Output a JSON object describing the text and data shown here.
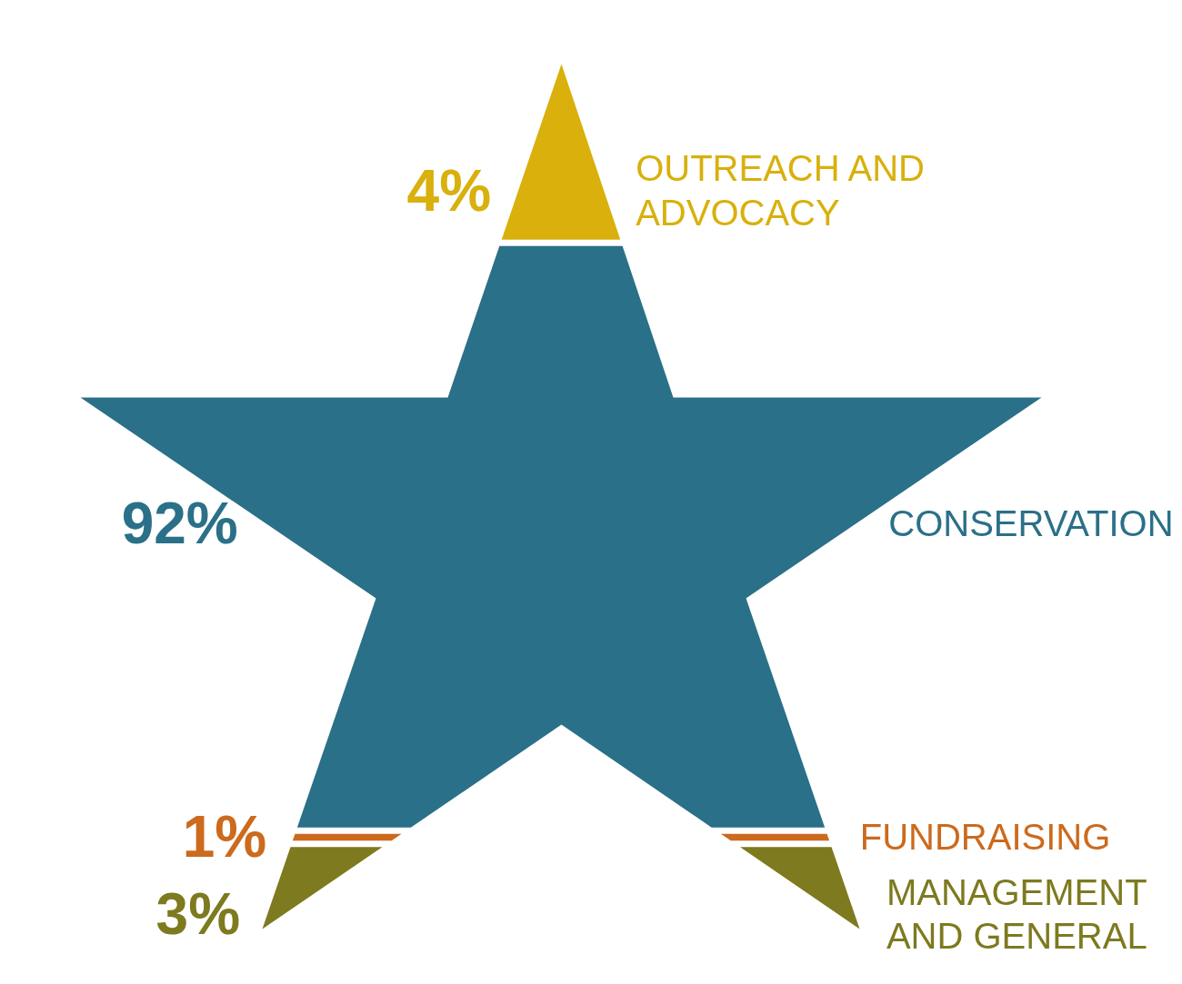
{
  "chart_data": {
    "type": "other",
    "categories": [
      "OUTREACH AND ADVOCACY",
      "CONSERVATION",
      "FUNDRAISING",
      "MANAGEMENT AND GENERAL"
    ],
    "values": [
      4,
      92,
      1,
      3
    ],
    "value_labels": [
      "4%",
      "92%",
      "1%",
      "3%"
    ],
    "colors": [
      "#d9b00c",
      "#2a7088",
      "#cc6a1d",
      "#7d7a1f"
    ]
  }
}
